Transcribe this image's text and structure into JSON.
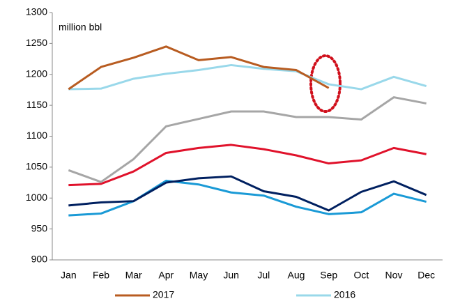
{
  "chart_data": {
    "type": "line",
    "axis_label": "million bbl",
    "categories": [
      "Jan",
      "Feb",
      "Mar",
      "Apr",
      "May",
      "Jun",
      "Jul",
      "Aug",
      "Sep",
      "Oct",
      "Nov",
      "Dec"
    ],
    "series": [
      {
        "color": "#1a9ad6",
        "values": [
          972,
          975,
          995,
          1028,
          1022,
          1009,
          1004,
          986,
          974,
          977,
          1007,
          994
        ]
      },
      {
        "color": "#002060",
        "values": [
          988,
          993,
          995,
          1025,
          1032,
          1035,
          1011,
          1002,
          980,
          1010,
          1027,
          1005
        ]
      },
      {
        "color": "#e0122b",
        "values": [
          1021,
          1023,
          1043,
          1073,
          1081,
          1086,
          1079,
          1069,
          1056,
          1061,
          1081,
          1071
        ]
      },
      {
        "color": "#a6a6a6",
        "values": [
          1045,
          1026,
          1063,
          1116,
          1128,
          1140,
          1140,
          1131,
          1131,
          1127,
          1163,
          1153
        ]
      },
      {
        "name": "2016",
        "color": "#99d8ea",
        "values": [
          1176,
          1177,
          1193,
          1201,
          1207,
          1215,
          1209,
          1205,
          1184,
          1176,
          1196,
          1181
        ]
      },
      {
        "name": "2017",
        "color": "#b85c21",
        "values": [
          1176,
          1212,
          1227,
          1245,
          1223,
          1228,
          1212,
          1207,
          1178,
          null,
          null,
          null
        ]
      }
    ],
    "ylim": [
      900,
      1300
    ],
    "yticks": [
      900,
      950,
      1000,
      1050,
      1100,
      1150,
      1200,
      1250,
      1300
    ],
    "grid": false
  }
}
